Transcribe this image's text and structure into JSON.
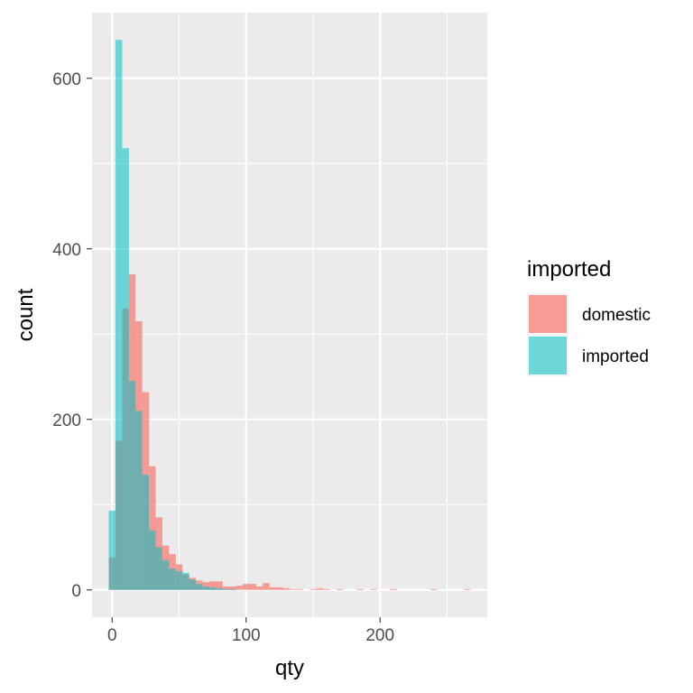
{
  "chart_data": {
    "type": "histogram",
    "xlabel": "qty",
    "ylabel": "count",
    "xlim": [
      -15,
      280
    ],
    "ylim": [
      -32,
      677
    ],
    "binwidth": 5,
    "x_ticks": [
      0,
      100,
      200
    ],
    "x_minor_ticks": [
      50,
      150,
      250
    ],
    "y_ticks": [
      0,
      200,
      400,
      600
    ],
    "y_minor_ticks": [
      100,
      300,
      500
    ],
    "grid": true,
    "legend": {
      "title": "imported",
      "position": "right"
    },
    "series": [
      {
        "name": "domestic",
        "color": "#F8766D",
        "opacity": 0.7,
        "bins": [
          {
            "x0": -2.5,
            "count": 38
          },
          {
            "x0": 2.5,
            "count": 175
          },
          {
            "x0": 7.5,
            "count": 330
          },
          {
            "x0": 12.5,
            "count": 370
          },
          {
            "x0": 17.5,
            "count": 315
          },
          {
            "x0": 22.5,
            "count": 232
          },
          {
            "x0": 27.5,
            "count": 145
          },
          {
            "x0": 32.5,
            "count": 85
          },
          {
            "x0": 37.5,
            "count": 52
          },
          {
            "x0": 42.5,
            "count": 42
          },
          {
            "x0": 47.5,
            "count": 30
          },
          {
            "x0": 52.5,
            "count": 18
          },
          {
            "x0": 57.5,
            "count": 14
          },
          {
            "x0": 62.5,
            "count": 11
          },
          {
            "x0": 67.5,
            "count": 9
          },
          {
            "x0": 72.5,
            "count": 10
          },
          {
            "x0": 77.5,
            "count": 10
          },
          {
            "x0": 82.5,
            "count": 4
          },
          {
            "x0": 87.5,
            "count": 4
          },
          {
            "x0": 92.5,
            "count": 5
          },
          {
            "x0": 97.5,
            "count": 7
          },
          {
            "x0": 102.5,
            "count": 7
          },
          {
            "x0": 107.5,
            "count": 4
          },
          {
            "x0": 112.5,
            "count": 8
          },
          {
            "x0": 117.5,
            "count": 3
          },
          {
            "x0": 122.5,
            "count": 3
          },
          {
            "x0": 127.5,
            "count": 2
          },
          {
            "x0": 132.5,
            "count": 1
          },
          {
            "x0": 137.5,
            "count": 1
          },
          {
            "x0": 147.5,
            "count": 1
          },
          {
            "x0": 152.5,
            "count": 2
          },
          {
            "x0": 157.5,
            "count": 1
          },
          {
            "x0": 167.5,
            "count": 1
          },
          {
            "x0": 182.5,
            "count": 1
          },
          {
            "x0": 192.5,
            "count": 1
          },
          {
            "x0": 207.5,
            "count": 1
          },
          {
            "x0": 237.5,
            "count": 1
          },
          {
            "x0": 262.5,
            "count": 1
          }
        ]
      },
      {
        "name": "imported",
        "color": "#00BFC4",
        "opacity": 0.55,
        "bins": [
          {
            "x0": -2.5,
            "count": 93
          },
          {
            "x0": 2.5,
            "count": 645
          },
          {
            "x0": 7.5,
            "count": 518
          },
          {
            "x0": 12.5,
            "count": 245
          },
          {
            "x0": 17.5,
            "count": 210
          },
          {
            "x0": 22.5,
            "count": 135
          },
          {
            "x0": 27.5,
            "count": 70
          },
          {
            "x0": 32.5,
            "count": 50
          },
          {
            "x0": 37.5,
            "count": 35
          },
          {
            "x0": 42.5,
            "count": 25
          },
          {
            "x0": 47.5,
            "count": 22
          },
          {
            "x0": 52.5,
            "count": 20
          },
          {
            "x0": 57.5,
            "count": 12
          },
          {
            "x0": 62.5,
            "count": 7
          },
          {
            "x0": 67.5,
            "count": 4
          },
          {
            "x0": 72.5,
            "count": 3
          },
          {
            "x0": 77.5,
            "count": 2
          },
          {
            "x0": 82.5,
            "count": 1
          },
          {
            "x0": 87.5,
            "count": 1
          }
        ]
      }
    ]
  }
}
